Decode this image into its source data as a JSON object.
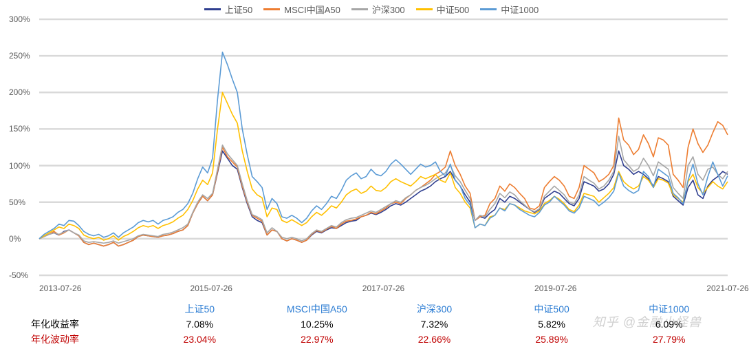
{
  "chart": {
    "type": "line",
    "background_color": "#ffffff",
    "grid_color": "#d9d9d9",
    "axis_label_color": "#595959",
    "label_fontsize": 12,
    "legend_fontsize": 13,
    "line_width": 1.6,
    "ylim": [
      -50,
      300
    ],
    "ytick_step": 50,
    "yticks": [
      "-50%",
      "0%",
      "50%",
      "100%",
      "150%",
      "200%",
      "250%",
      "300%"
    ],
    "xtick_count": 5,
    "xticks": [
      "2013-07-26",
      "2015-07-26",
      "2017-07-26",
      "2019-07-26",
      "2021-07-26"
    ],
    "series": [
      {
        "name": "上证50",
        "color": "#2f3e8f",
        "values": [
          0,
          3,
          6,
          8,
          5,
          10,
          12,
          8,
          4,
          -5,
          -8,
          -6,
          -8,
          -10,
          -8,
          -5,
          -10,
          -8,
          -5,
          -2,
          3,
          5,
          4,
          3,
          2,
          4,
          5,
          7,
          10,
          12,
          18,
          35,
          48,
          58,
          52,
          60,
          90,
          120,
          110,
          100,
          95,
          70,
          48,
          30,
          25,
          22,
          5,
          12,
          10,
          0,
          -3,
          0,
          -2,
          -5,
          -2,
          5,
          10,
          8,
          12,
          15,
          14,
          18,
          22,
          24,
          25,
          30,
          32,
          35,
          33,
          36,
          40,
          45,
          48,
          46,
          50,
          55,
          60,
          65,
          68,
          72,
          78,
          82,
          85,
          92,
          80,
          72,
          60,
          50,
          25,
          30,
          28,
          35,
          40,
          55,
          50,
          58,
          55,
          50,
          45,
          40,
          36,
          40,
          55,
          60,
          65,
          62,
          55,
          48,
          45,
          55,
          78,
          75,
          72,
          65,
          68,
          75,
          88,
          120,
          100,
          95,
          88,
          92,
          88,
          82,
          72,
          85,
          82,
          78,
          58,
          52,
          46,
          70,
          80,
          60,
          55,
          72,
          80,
          85,
          92,
          88
        ]
      },
      {
        "name": "MSCI中国A50",
        "color": "#ed7d31",
        "values": [
          0,
          3,
          6,
          10,
          5,
          8,
          12,
          8,
          4,
          -5,
          -8,
          -6,
          -8,
          -10,
          -8,
          -5,
          -10,
          -8,
          -5,
          -2,
          3,
          5,
          4,
          3,
          2,
          4,
          5,
          7,
          10,
          12,
          18,
          35,
          48,
          58,
          52,
          60,
          92,
          125,
          112,
          105,
          98,
          72,
          50,
          32,
          28,
          24,
          5,
          12,
          10,
          0,
          -3,
          0,
          -2,
          -5,
          -2,
          6,
          11,
          9,
          13,
          17,
          14,
          20,
          24,
          25,
          27,
          30,
          32,
          36,
          34,
          38,
          42,
          48,
          50,
          48,
          55,
          60,
          66,
          70,
          75,
          80,
          88,
          92,
          98,
          120,
          100,
          88,
          72,
          62,
          25,
          30,
          32,
          48,
          55,
          72,
          65,
          75,
          70,
          62,
          55,
          42,
          40,
          45,
          70,
          78,
          85,
          80,
          72,
          58,
          55,
          70,
          100,
          95,
          90,
          78,
          82,
          88,
          100,
          165,
          135,
          128,
          115,
          122,
          142,
          130,
          112,
          138,
          135,
          128,
          88,
          80,
          70,
          125,
          150,
          130,
          118,
          128,
          145,
          160,
          155,
          142
        ]
      },
      {
        "name": "沪深300",
        "color": "#a6a6a6",
        "values": [
          0,
          3,
          6,
          8,
          6,
          9,
          12,
          8,
          5,
          -3,
          -5,
          -4,
          -5,
          -6,
          -5,
          -3,
          -6,
          -4,
          -2,
          0,
          4,
          6,
          5,
          4,
          3,
          6,
          7,
          9,
          12,
          15,
          20,
          36,
          50,
          60,
          55,
          62,
          95,
          128,
          116,
          108,
          100,
          75,
          52,
          33,
          30,
          26,
          8,
          15,
          10,
          2,
          0,
          2,
          0,
          -3,
          0,
          7,
          12,
          10,
          14,
          18,
          16,
          22,
          26,
          28,
          29,
          32,
          35,
          38,
          36,
          40,
          44,
          48,
          52,
          50,
          56,
          60,
          66,
          70,
          73,
          77,
          82,
          86,
          90,
          100,
          86,
          78,
          66,
          55,
          25,
          32,
          30,
          40,
          48,
          62,
          56,
          64,
          60,
          52,
          46,
          40,
          37,
          41,
          58,
          65,
          72,
          66,
          60,
          50,
          48,
          60,
          85,
          80,
          76,
          68,
          72,
          80,
          92,
          140,
          108,
          100,
          92,
          96,
          110,
          100,
          86,
          105,
          100,
          95,
          70,
          62,
          55,
          100,
          112,
          88,
          80,
          95,
          98,
          88,
          82,
          92
        ]
      },
      {
        "name": "中证500",
        "color": "#ffc000",
        "values": [
          0,
          4,
          8,
          12,
          16,
          14,
          20,
          18,
          14,
          5,
          2,
          0,
          2,
          -2,
          0,
          4,
          -2,
          3,
          6,
          10,
          15,
          18,
          16,
          18,
          14,
          18,
          20,
          23,
          28,
          32,
          40,
          52,
          68,
          80,
          74,
          90,
          150,
          200,
          185,
          170,
          158,
          120,
          92,
          68,
          60,
          56,
          30,
          42,
          40,
          25,
          22,
          26,
          22,
          18,
          22,
          30,
          36,
          32,
          38,
          45,
          42,
          50,
          60,
          65,
          68,
          62,
          65,
          72,
          66,
          65,
          70,
          78,
          82,
          78,
          75,
          72,
          78,
          85,
          82,
          85,
          88,
          80,
          77,
          90,
          70,
          62,
          50,
          42,
          15,
          20,
          18,
          30,
          32,
          42,
          40,
          48,
          46,
          42,
          38,
          36,
          34,
          38,
          48,
          52,
          58,
          54,
          48,
          40,
          37,
          46,
          62,
          60,
          58,
          50,
          56,
          62,
          70,
          92,
          78,
          72,
          68,
          72,
          85,
          80,
          70,
          82,
          80,
          76,
          60,
          55,
          50,
          78,
          88,
          70,
          62,
          70,
          78,
          72,
          68,
          78
        ]
      },
      {
        "name": "中证1000",
        "color": "#5b9bd5",
        "values": [
          0,
          6,
          10,
          14,
          20,
          18,
          25,
          24,
          18,
          10,
          6,
          4,
          6,
          2,
          4,
          8,
          2,
          8,
          12,
          16,
          22,
          25,
          23,
          25,
          20,
          25,
          27,
          30,
          36,
          40,
          48,
          62,
          82,
          98,
          90,
          110,
          190,
          255,
          238,
          218,
          200,
          150,
          115,
          85,
          78,
          70,
          40,
          55,
          48,
          30,
          28,
          32,
          28,
          22,
          28,
          38,
          45,
          40,
          48,
          58,
          55,
          66,
          80,
          86,
          90,
          82,
          85,
          95,
          88,
          86,
          92,
          102,
          108,
          102,
          95,
          88,
          95,
          102,
          98,
          100,
          105,
          92,
          86,
          102,
          80,
          72,
          55,
          46,
          15,
          20,
          18,
          28,
          32,
          42,
          38,
          48,
          46,
          40,
          36,
          32,
          30,
          36,
          46,
          50,
          58,
          52,
          46,
          38,
          35,
          42,
          58,
          55,
          52,
          45,
          50,
          56,
          65,
          90,
          72,
          66,
          62,
          66,
          92,
          85,
          70,
          95,
          90,
          85,
          62,
          56,
          48,
          80,
          102,
          75,
          60,
          85,
          105,
          88,
          72,
          86
        ]
      }
    ]
  },
  "stats": {
    "columns": [
      "上证50",
      "MSCI中国A50",
      "沪深300",
      "中证500",
      "中证1000"
    ],
    "column_color": "#2b7cd3",
    "rows": [
      {
        "label": "年化收益率",
        "label_color": "#000000",
        "values": [
          "7.08%",
          "10.25%",
          "7.32%",
          "5.82%",
          "6.09%"
        ],
        "value_color": "#000000"
      },
      {
        "label": "年化波动率",
        "label_color": "#c00000",
        "values": [
          "23.04%",
          "22.97%",
          "22.66%",
          "25.89%",
          "27.79%"
        ],
        "value_color": "#c00000"
      }
    ]
  },
  "watermark": "知乎 @金融小怪兽"
}
